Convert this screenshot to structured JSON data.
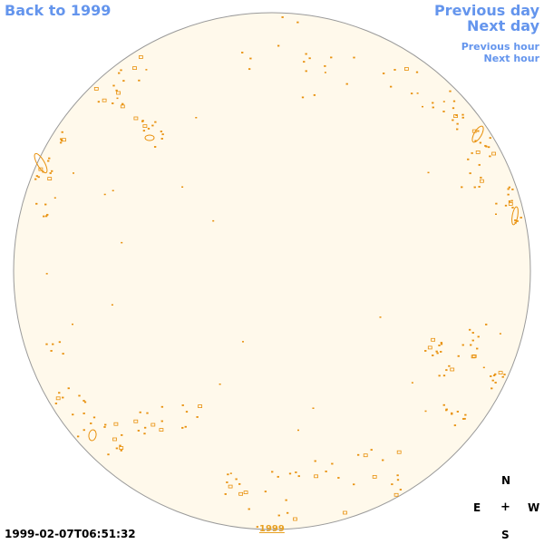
{
  "nav": {
    "back_label": "Back to 1999",
    "prev_day_label": "Previous day",
    "next_day_label": "Next day",
    "prev_hour_label": "Previous hour",
    "next_hour_label": "Next hour"
  },
  "footer": {
    "timestamp": "1999-02-07T06:51:32",
    "year_link": "1999"
  },
  "compass": {
    "north": "N",
    "east": "E",
    "center": "+",
    "west": "W",
    "south": "S"
  },
  "colors": {
    "link": "#6495ED",
    "disk_fill": "#FFF9EB",
    "disk_stroke": "#9A9A9A",
    "contour": "#E8900C",
    "year_link": "#E8A020"
  },
  "icons": {
    "sun_disk": "sun-disk-image"
  }
}
